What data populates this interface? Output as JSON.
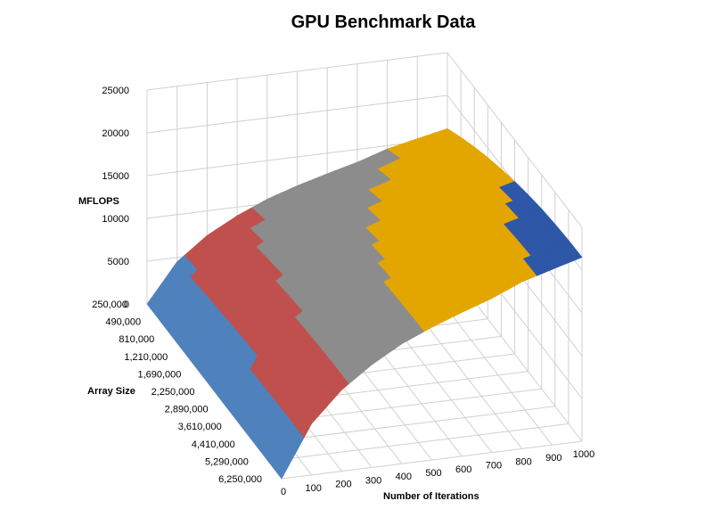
{
  "chart_data": {
    "type": "surface",
    "title": "GPU Benchmark Data",
    "z_axis_label": "MFLOPS",
    "y_axis_label": "Array Size",
    "x_axis_label": "Number of Iterations",
    "z_ticks": [
      0,
      5000,
      10000,
      15000,
      20000,
      25000
    ],
    "zlim": [
      0,
      25000
    ],
    "array_size_ticks": [
      "250,000",
      "490,000",
      "810,000",
      "1,210,000",
      "1,690,000",
      "2,250,000",
      "2,890,000",
      "3,610,000",
      "4,410,000",
      "5,290,000",
      "6,250,000"
    ],
    "iteration_ticks": [
      "0",
      "100",
      "200",
      "300",
      "400",
      "500",
      "600",
      "700",
      "800",
      "900",
      "1000"
    ],
    "bands": [
      {
        "range": "0-5000",
        "color": "#4f81bd"
      },
      {
        "range": "5000-10000",
        "color": "#c0504d"
      },
      {
        "range": "10000-15000",
        "color": "#8c8c8c"
      },
      {
        "range": "15000-20000",
        "color": "#e3a600"
      },
      {
        "range": "20000-25000",
        "color": "#2e57a7"
      }
    ],
    "mflops_by_iterations": {
      "iterations": [
        0,
        100,
        200,
        300,
        400,
        500,
        600,
        700,
        800,
        900,
        1000
      ],
      "mflops_at_largest_array": [
        0,
        6000,
        9500,
        12000,
        14000,
        15500,
        16800,
        18000,
        19500,
        20500,
        21500
      ]
    }
  }
}
